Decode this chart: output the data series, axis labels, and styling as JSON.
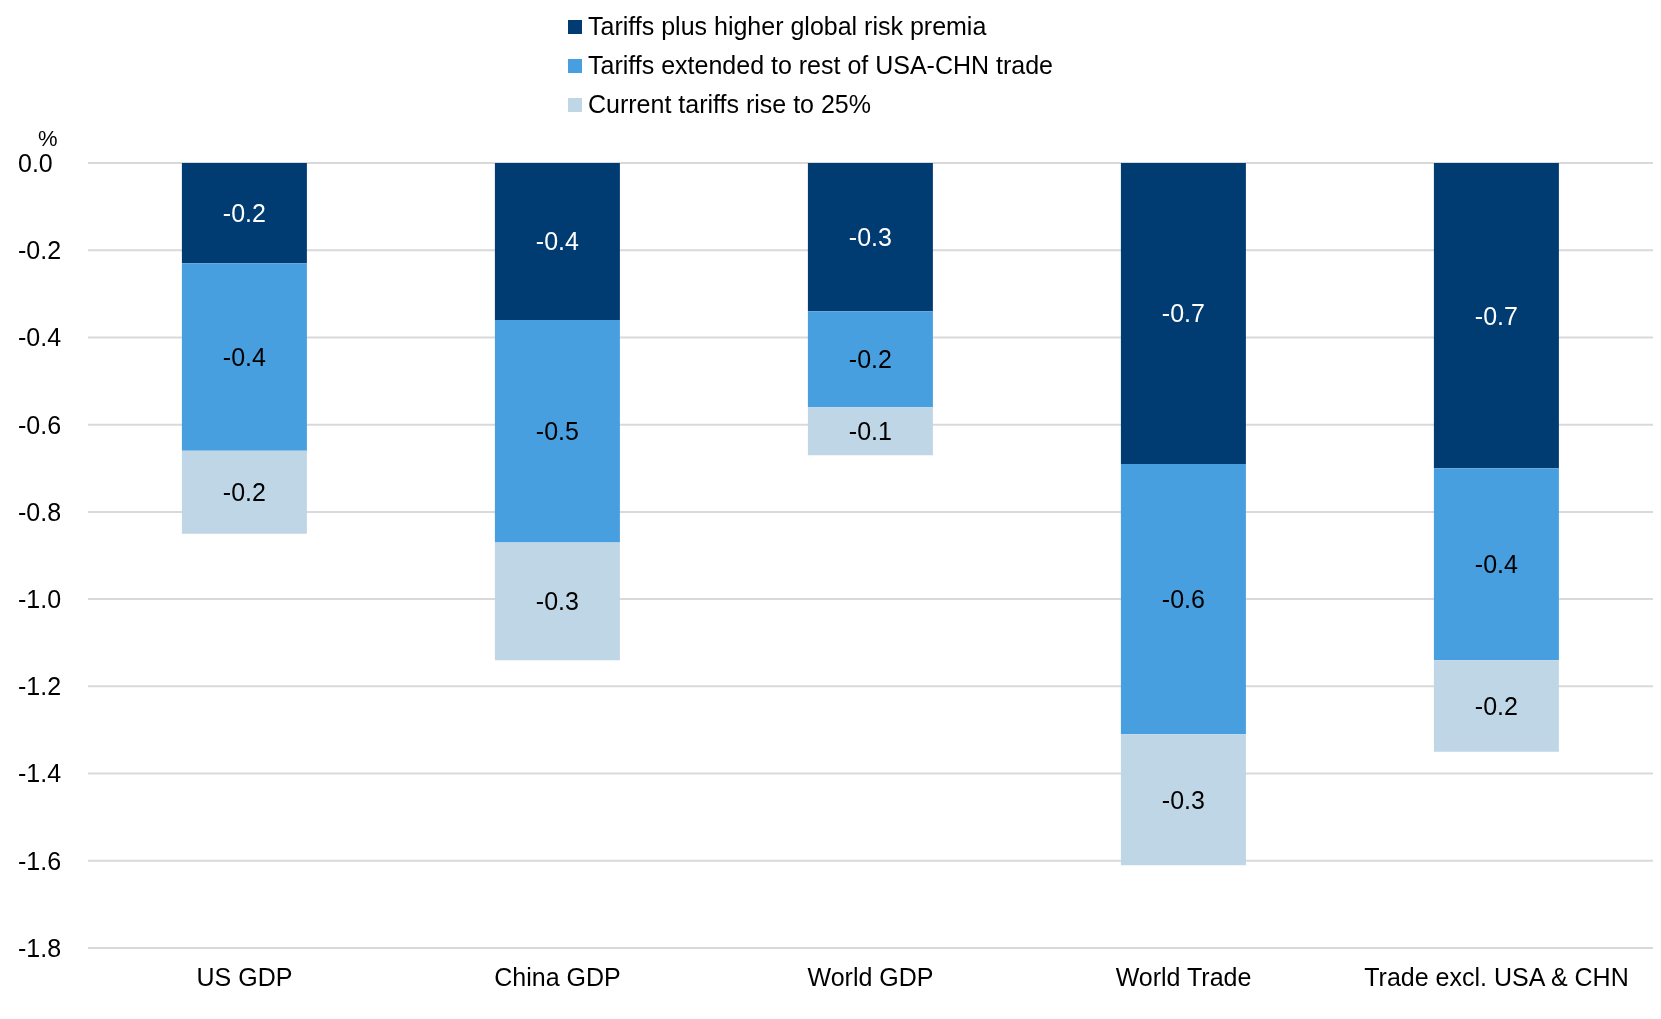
{
  "chart_data": {
    "type": "bar",
    "stacked": true,
    "ylabel": "%",
    "categories": [
      "US GDP",
      "China GDP",
      "World GDP",
      "World Trade",
      "Trade excl. USA & CHN"
    ],
    "series": [
      {
        "name": "Tariffs plus higher global risk premia",
        "color": "#003c71",
        "values": [
          -0.23,
          -0.36,
          -0.34,
          -0.69,
          -0.7
        ],
        "value_labels": [
          "-0.2",
          "-0.4",
          "-0.3",
          "-0.7",
          "-0.7"
        ]
      },
      {
        "name": "Tariffs extended to rest of USA-CHN trade",
        "color": "#479fe0",
        "values": [
          -0.43,
          -0.51,
          -0.22,
          -0.62,
          -0.44
        ],
        "value_labels": [
          "-0.4",
          "-0.5",
          "-0.2",
          "-0.6",
          "-0.4"
        ]
      },
      {
        "name": "Current tariffs rise to 25%",
        "color": "#bfd6e6",
        "values": [
          -0.19,
          -0.27,
          -0.11,
          -0.3,
          -0.21
        ],
        "value_labels": [
          "-0.2",
          "-0.3",
          "-0.1",
          "-0.3",
          "-0.2"
        ]
      }
    ],
    "ylim": [
      -1.8,
      0
    ],
    "yticks": [
      {
        "value": 0,
        "label": "0.0"
      },
      {
        "value": -0.2,
        "label": "-0.2"
      },
      {
        "value": -0.4,
        "label": "-0.4"
      },
      {
        "value": -0.6,
        "label": "-0.6"
      },
      {
        "value": -0.8,
        "label": "-0.8"
      },
      {
        "value": -1,
        "label": "-1.0"
      },
      {
        "value": -1.2,
        "label": "-1.2"
      },
      {
        "value": -1.4,
        "label": "-1.4"
      },
      {
        "value": -1.6,
        "label": "-1.6"
      },
      {
        "value": -1.8,
        "label": "-1.8"
      }
    ],
    "grid": "y",
    "legend": "top"
  }
}
